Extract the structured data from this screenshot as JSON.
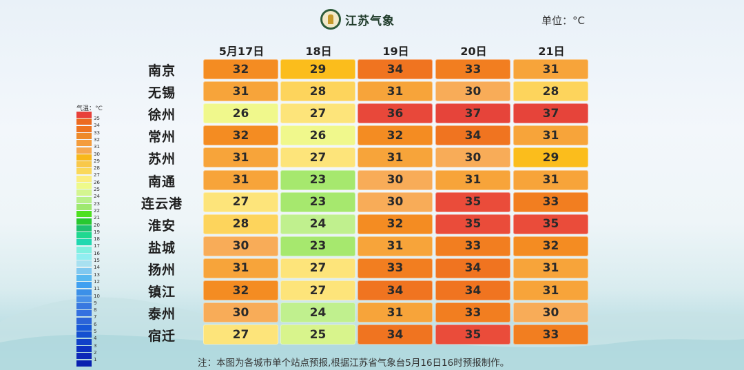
{
  "header": {
    "logo_text": "江苏气象",
    "unit": "单位：°C"
  },
  "legend": {
    "title": "气温：°C",
    "ticks": [
      "35",
      "34",
      "33",
      "32",
      "31",
      "30",
      "29",
      "28",
      "27",
      "26",
      "25",
      "24",
      "23",
      "22",
      "21",
      "20",
      "19",
      "18",
      "17",
      "16",
      "15",
      "14",
      "13",
      "12",
      "11",
      "10",
      "9",
      "8",
      "7",
      "6",
      "5",
      "4",
      "3",
      "2",
      "1"
    ],
    "colors": [
      "#e8403a",
      "#ec6a20",
      "#ee7420",
      "#ee8a2a",
      "#f49c3c",
      "#f6a850",
      "#f8b81a",
      "#f9c84a",
      "#fad85a",
      "#fbee80",
      "#eefa8a",
      "#d4f590",
      "#b8f08a",
      "#9ee870",
      "#4ee020",
      "#28c830",
      "#20c070",
      "#20d890",
      "#20d8b0",
      "#80f0e0",
      "#90eef0",
      "#a8e0f0",
      "#80c8f0",
      "#58b8f0",
      "#40a0f0",
      "#3c90e8",
      "#4890e8",
      "#3878e0",
      "#3470e0",
      "#2c64d8",
      "#1858d8",
      "#1450d0",
      "#1040c8",
      "#0c30c0",
      "#0c28b8",
      "#0820b0"
    ]
  },
  "note": "注：本图为各城市单个站点预报,根据江苏省气象台5月16日16时预报制作。",
  "chart_data": {
    "type": "heatmap",
    "title": "",
    "columns": [
      "5月17日",
      "18日",
      "19日",
      "20日",
      "21日"
    ],
    "rows": [
      "南京",
      "无锡",
      "徐州",
      "常州",
      "苏州",
      "南通",
      "连云港",
      "淮安",
      "盐城",
      "扬州",
      "镇江",
      "泰州",
      "宿迁"
    ],
    "values": [
      [
        32,
        29,
        34,
        33,
        31
      ],
      [
        31,
        28,
        31,
        30,
        28
      ],
      [
        26,
        27,
        36,
        37,
        37
      ],
      [
        32,
        26,
        32,
        34,
        31
      ],
      [
        31,
        27,
        31,
        30,
        29
      ],
      [
        31,
        23,
        30,
        31,
        31
      ],
      [
        27,
        23,
        30,
        35,
        33
      ],
      [
        28,
        24,
        32,
        35,
        35
      ],
      [
        30,
        23,
        31,
        33,
        32
      ],
      [
        31,
        27,
        33,
        34,
        31
      ],
      [
        32,
        27,
        34,
        34,
        31
      ],
      [
        30,
        24,
        31,
        33,
        30
      ],
      [
        27,
        25,
        34,
        35,
        33
      ]
    ],
    "unit": "°C",
    "color_scale": {
      "23": "#a6e86e",
      "24": "#c0f08e",
      "25": "#d8f48c",
      "26": "#f0f88c",
      "27": "#fde47a",
      "28": "#fdd45c",
      "29": "#fbbd1c",
      "30": "#f8ac58",
      "31": "#f7a43a",
      "32": "#f48c22",
      "33": "#f27e20",
      "34": "#f07420",
      "35": "#ea4c3a",
      "36": "#e8483a",
      "37": "#e6443a"
    }
  }
}
